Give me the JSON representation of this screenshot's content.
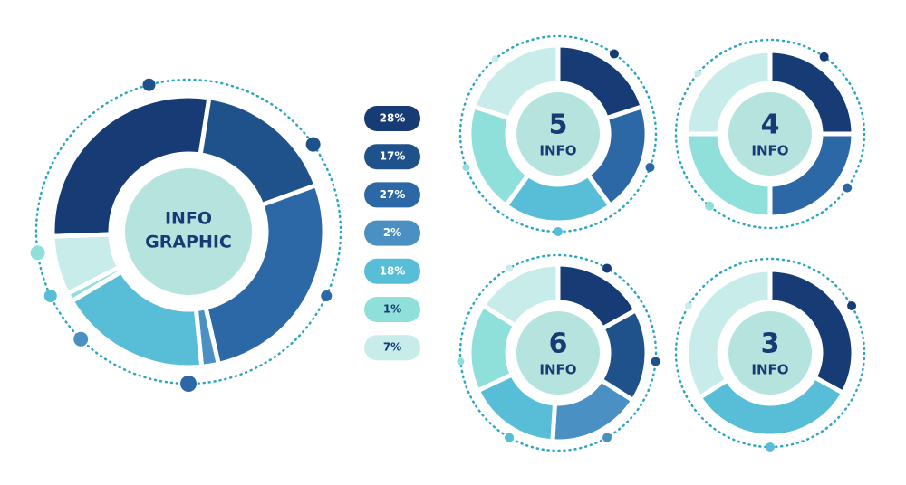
{
  "chart_data": [
    {
      "type": "donut",
      "center_lines": [
        "INFO",
        "GRAPHIC"
      ],
      "values": [
        28,
        17,
        27,
        2,
        18,
        1,
        7
      ],
      "value_labels": [
        "28%",
        "17%",
        "27%",
        "2%",
        "18%",
        "1%",
        "7%"
      ],
      "colors": [
        "#173b74",
        "#1f518a",
        "#2d68a6",
        "#4b90c2",
        "#58bdd6",
        "#8fdfdb",
        "#c7ecea"
      ],
      "legend": true
    },
    {
      "type": "donut",
      "center_lines": [
        "5",
        "INFO"
      ],
      "values": [
        20,
        20,
        20,
        20,
        20
      ],
      "colors": [
        "#173b74",
        "#2d68a6",
        "#58bdd6",
        "#8fdfdb",
        "#c7ecea"
      ]
    },
    {
      "type": "donut",
      "center_lines": [
        "4",
        "INFO"
      ],
      "values": [
        25,
        25,
        25,
        25
      ],
      "colors": [
        "#173b74",
        "#2d68a6",
        "#8fdfdb",
        "#c7ecea"
      ]
    },
    {
      "type": "donut",
      "center_lines": [
        "6",
        "INFO"
      ],
      "values": [
        17,
        17,
        17,
        17,
        16,
        16
      ],
      "colors": [
        "#173b74",
        "#1f518a",
        "#4b90c2",
        "#58bdd6",
        "#8fdfdb",
        "#c7ecea"
      ]
    },
    {
      "type": "donut",
      "center_lines": [
        "3",
        "INFO"
      ],
      "values": [
        33,
        33,
        34
      ],
      "colors": [
        "#173b74",
        "#58bdd6",
        "#c7ecea"
      ]
    }
  ]
}
